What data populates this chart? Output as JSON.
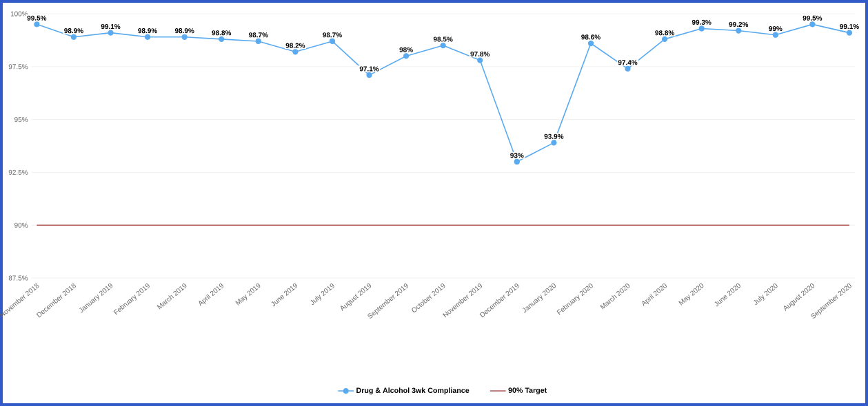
{
  "chart_data": {
    "type": "line",
    "categories": [
      "November 2018",
      "December 2018",
      "January 2019",
      "February 2019",
      "March 2019",
      "April 2019",
      "May 2019",
      "June 2019",
      "July 2019",
      "August 2019",
      "September 2019",
      "October 2019",
      "November 2019",
      "December 2019",
      "January 2020",
      "February 2020",
      "March 2020",
      "April 2020",
      "May 2020",
      "June 2020",
      "July 2020",
      "August 2020",
      "September 2020"
    ],
    "series": [
      {
        "name": "Drug & Alcohol 3wk Compliance",
        "color": "#5aaaf0",
        "marker": "circle",
        "values": [
          99.5,
          98.9,
          99.1,
          98.9,
          98.9,
          98.8,
          98.7,
          98.2,
          98.7,
          97.1,
          98,
          98.5,
          97.8,
          93,
          93.9,
          98.6,
          97.4,
          98.8,
          99.3,
          99.2,
          99,
          99.5,
          99.1
        ],
        "value_labels": [
          "99.5%",
          "98.9%",
          "99.1%",
          "98.9%",
          "98.9%",
          "98.8%",
          "98.7%",
          "98.2%",
          "98.7%",
          "97.1%",
          "98%",
          "98.5%",
          "97.8%",
          "93%",
          "93.9%",
          "98.6%",
          "97.4%",
          "98.8%",
          "99.3%",
          "99.2%",
          "99%",
          "99.5%",
          "99.1%"
        ]
      },
      {
        "name": "90% Target",
        "color": "#b05a5a",
        "marker": "none",
        "values": [
          90,
          90,
          90,
          90,
          90,
          90,
          90,
          90,
          90,
          90,
          90,
          90,
          90,
          90,
          90,
          90,
          90,
          90,
          90,
          90,
          90,
          90,
          90
        ]
      }
    ],
    "ylim": [
      87.5,
      100
    ],
    "yticks": [
      {
        "value": 87.5,
        "label": "87.5%"
      },
      {
        "value": 90,
        "label": "90%"
      },
      {
        "value": 92.5,
        "label": "92.5%"
      },
      {
        "value": 95,
        "label": "95%"
      },
      {
        "value": 97.5,
        "label": "97.5%"
      },
      {
        "value": 100,
        "label": "100%"
      }
    ],
    "grid": "y",
    "legend": "bottom",
    "line_style": "solid"
  }
}
